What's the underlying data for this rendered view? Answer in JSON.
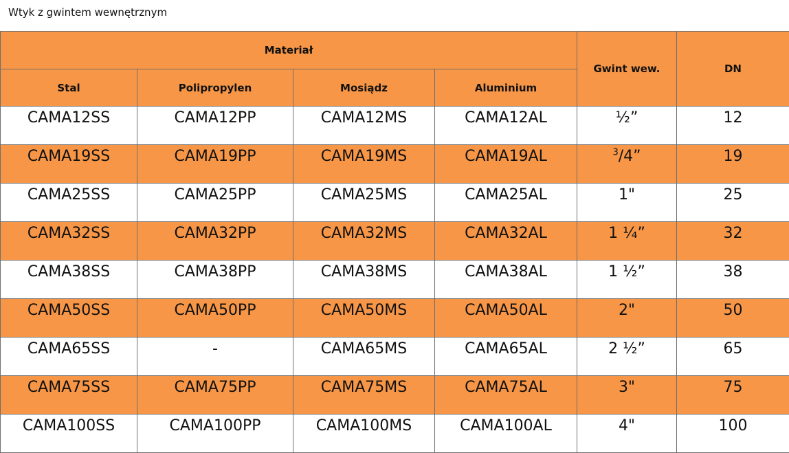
{
  "caption": "Wtyk z gwintem wewnętrznym",
  "headers": {
    "material": "Materiał",
    "steel": "Stal",
    "polypropylene": "Polipropylen",
    "brass": "Mosiądz",
    "aluminium": "Aluminium",
    "thread": "Gwint wew.",
    "dn": "DN"
  },
  "colors": {
    "accent": "#f79646",
    "row_alt": "#ffffff",
    "border": "#6e6e6e"
  },
  "rows": [
    {
      "steel": "CAMA12SS",
      "polypropylene": "CAMA12PP",
      "brass": "CAMA12MS",
      "aluminium": "CAMA12AL",
      "thread": "½”",
      "dn": "12"
    },
    {
      "steel": "CAMA19SS",
      "polypropylene": "CAMA19PP",
      "brass": "CAMA19MS",
      "aluminium": "CAMA19AL",
      "thread_sup": "3",
      "thread": "/4”",
      "dn": "19"
    },
    {
      "steel": "CAMA25SS",
      "polypropylene": "CAMA25PP",
      "brass": "CAMA25MS",
      "aluminium": "CAMA25AL",
      "thread": "1\"",
      "dn": "25"
    },
    {
      "steel": "CAMA32SS",
      "polypropylene": "CAMA32PP",
      "brass": "CAMA32MS",
      "aluminium": "CAMA32AL",
      "thread": "1 ¼”",
      "dn": "32"
    },
    {
      "steel": "CAMA38SS",
      "polypropylene": "CAMA38PP",
      "brass": "CAMA38MS",
      "aluminium": "CAMA38AL",
      "thread": "1 ½”",
      "dn": "38"
    },
    {
      "steel": "CAMA50SS",
      "polypropylene": "CAMA50PP",
      "brass": "CAMA50MS",
      "aluminium": "CAMA50AL",
      "thread": "2\"",
      "dn": "50"
    },
    {
      "steel": "CAMA65SS",
      "polypropylene": "-",
      "brass": "CAMA65MS",
      "aluminium": "CAMA65AL",
      "thread": "2 ½”",
      "dn": "65"
    },
    {
      "steel": "CAMA75SS",
      "polypropylene": "CAMA75PP",
      "brass": "CAMA75MS",
      "aluminium": "CAMA75AL",
      "thread": "3\"",
      "dn": "75"
    },
    {
      "steel": "CAMA100SS",
      "polypropylene": "CAMA100PP",
      "brass": "CAMA100MS",
      "aluminium": "CAMA100AL",
      "thread": "4\"",
      "dn": "100"
    }
  ]
}
